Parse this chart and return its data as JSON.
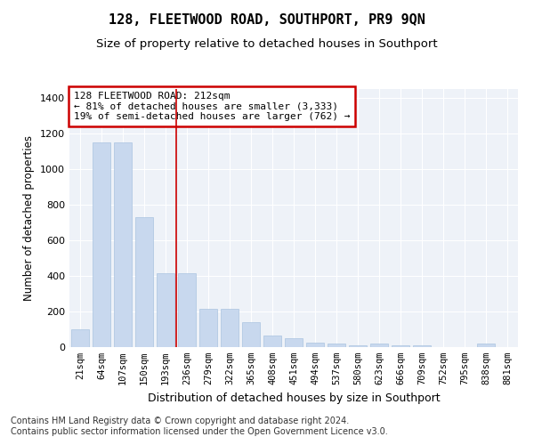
{
  "title": "128, FLEETWOOD ROAD, SOUTHPORT, PR9 9QN",
  "subtitle": "Size of property relative to detached houses in Southport",
  "xlabel": "Distribution of detached houses by size in Southport",
  "ylabel": "Number of detached properties",
  "categories": [
    "21sqm",
    "64sqm",
    "107sqm",
    "150sqm",
    "193sqm",
    "236sqm",
    "279sqm",
    "322sqm",
    "365sqm",
    "408sqm",
    "451sqm",
    "494sqm",
    "537sqm",
    "580sqm",
    "623sqm",
    "666sqm",
    "709sqm",
    "752sqm",
    "795sqm",
    "838sqm",
    "881sqm"
  ],
  "values": [
    100,
    1150,
    1150,
    730,
    415,
    415,
    215,
    215,
    140,
    65,
    50,
    27,
    18,
    10,
    18,
    10,
    10,
    0,
    0,
    18,
    0
  ],
  "bar_color": "#c8d8ee",
  "bar_edge_color": "#aac4e0",
  "vline_x": 4.5,
  "vline_color": "#cc0000",
  "annotation_text": "128 FLEETWOOD ROAD: 212sqm\n← 81% of detached houses are smaller (3,333)\n19% of semi-detached houses are larger (762) →",
  "annotation_box_color": "#cc0000",
  "ylim": [
    0,
    1450
  ],
  "yticks": [
    0,
    200,
    400,
    600,
    800,
    1000,
    1200,
    1400
  ],
  "bg_color": "#ffffff",
  "plot_bg_color": "#eef2f8",
  "footer": "Contains HM Land Registry data © Crown copyright and database right 2024.\nContains public sector information licensed under the Open Government Licence v3.0.",
  "title_fontsize": 11,
  "subtitle_fontsize": 9.5,
  "xlabel_fontsize": 9,
  "ylabel_fontsize": 8.5,
  "annotation_fontsize": 8,
  "footer_fontsize": 7,
  "tick_fontsize": 8,
  "xtick_fontsize": 7.5
}
